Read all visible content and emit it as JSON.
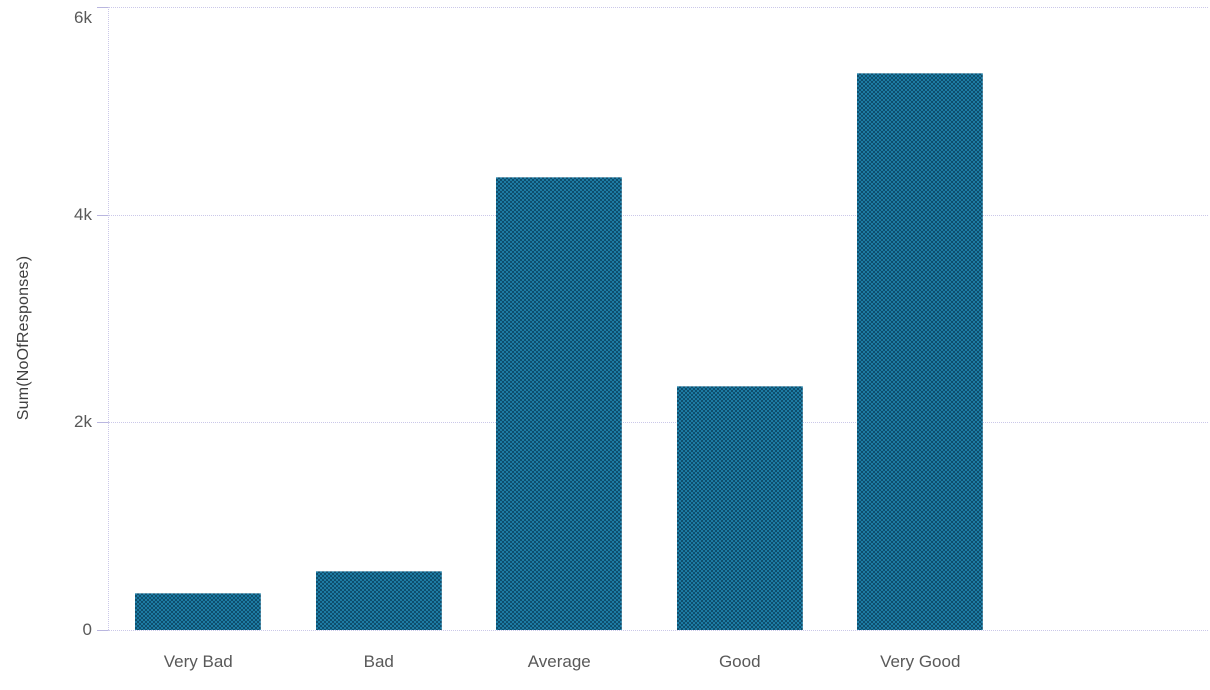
{
  "chart_data": {
    "type": "bar",
    "categories": [
      "Very Bad",
      "Bad",
      "Average",
      "Good",
      "Very Good"
    ],
    "values": [
      355,
      565,
      4360,
      2350,
      5360
    ],
    "title": "",
    "xlabel": "",
    "ylabel": "Sum(NoOfResponses)",
    "ylim": [
      0,
      6000
    ],
    "yticks": [
      {
        "value": 0,
        "label": "0"
      },
      {
        "value": 2000,
        "label": "2k"
      },
      {
        "value": 4000,
        "label": "4k"
      },
      {
        "value": 6000,
        "label": "6k"
      }
    ],
    "grid": true,
    "gridline_style": "dotted",
    "legend_position": "none",
    "bar_texture": "dotted-checker"
  },
  "colors": {
    "background": "#ffffff",
    "bar_teal": "#1d7ba3",
    "bar_dark": "#0e4e6d",
    "gridline": "#cbc8e9",
    "tickmark": "#b9b6df",
    "tick_text": "#595959",
    "category_text": "#595959",
    "axis_title_text": "#3f3f3f"
  }
}
